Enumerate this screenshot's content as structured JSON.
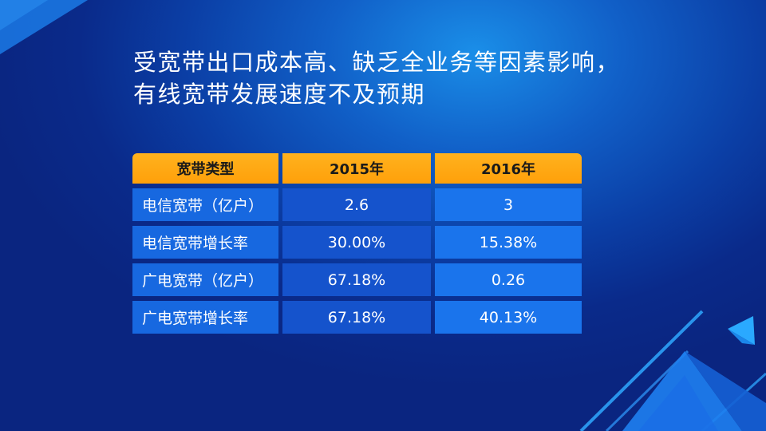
{
  "slide": {
    "title": "受宽带出口成本高、缺乏全业务等因素影响，有线宽带发展速度不及预期"
  },
  "table": {
    "headers": [
      "宽带类型",
      "2015年",
      "2016年"
    ],
    "rows": [
      [
        "电信宽带（亿户）",
        "2.6",
        "3"
      ],
      [
        "电信宽带增长率",
        "30.00%",
        "15.38%"
      ],
      [
        "广电宽带（亿户）",
        "67.18%",
        "0.26"
      ],
      [
        "广电宽带增长率",
        "67.18%",
        "40.13%"
      ]
    ]
  },
  "colors": {
    "header": "#ffa00a",
    "label_cell": "#1768e0",
    "cell_2015": "#1553cc",
    "cell_2016": "#1a74ec",
    "accent_line": "#2fa8ff"
  }
}
